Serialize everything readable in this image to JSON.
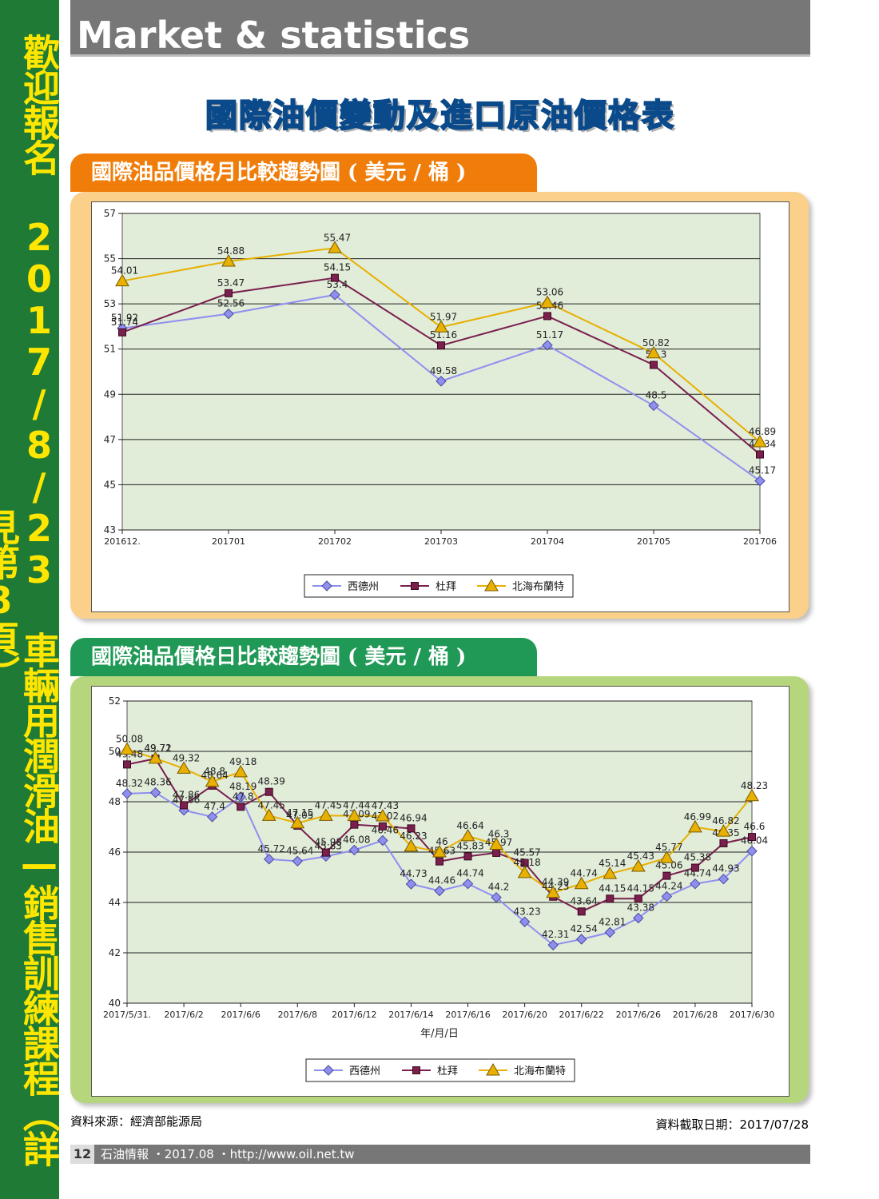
{
  "side_banner": {
    "text": "歡迎報名 2017/8/23 車輛用潤滑油—銷售訓練課程（詳見第8頁）"
  },
  "header": {
    "title": "Market & statistics"
  },
  "main_title": "國際油價變動及進口原油價格表",
  "tab_monthly": "國際油品價格月比較趨勢圖 ( 美元 / 桶 )",
  "tab_daily": "國際油品價格日比較趨勢圖 ( 美元 / 桶 )",
  "source_note": "資料來源：經濟部能源局",
  "date_note": "資料截取日期：2017/07/28",
  "footer": {
    "page": "12",
    "text": "石油情報 ・2017.08 ・http://www.oil.net.tw"
  },
  "colors": {
    "wti": "#8f8ff0",
    "dubai": "#7a1f4e",
    "brent": "#e8b000"
  },
  "chart_data": [
    {
      "type": "line",
      "title": "國際油品價格月比較趨勢圖 ( 美元 / 桶 )",
      "categories": [
        "201612.",
        "201701",
        "201702",
        "201703",
        "201704",
        "201705",
        "201706"
      ],
      "ylim": [
        43,
        57
      ],
      "yticks": [
        43,
        45,
        47,
        49,
        51,
        53,
        55,
        57
      ],
      "xlabel": "",
      "legend_position": "bottom",
      "grid": true,
      "series": [
        {
          "name": "西德州",
          "marker": "diamond",
          "values": [
            51.92,
            52.56,
            53.4,
            49.58,
            51.17,
            48.5,
            45.17
          ]
        },
        {
          "name": "杜拜",
          "marker": "square",
          "values": [
            51.74,
            53.47,
            54.15,
            51.16,
            52.46,
            50.3,
            46.34
          ]
        },
        {
          "name": "北海布蘭特",
          "marker": "triangle",
          "values": [
            54.01,
            54.88,
            55.47,
            51.97,
            53.06,
            50.82,
            46.89
          ]
        }
      ]
    },
    {
      "type": "line",
      "title": "國際油品價格日比較趨勢圖 ( 美元 / 桶 )",
      "categories": [
        "2017/5/31.",
        "2017/6/1",
        "2017/6/2",
        "2017/6/5",
        "2017/6/6",
        "2017/6/7",
        "2017/6/8",
        "2017/6/9",
        "2017/6/12",
        "2017/6/13",
        "2017/6/14",
        "2017/6/15",
        "2017/6/16",
        "2017/6/19",
        "2017/6/20",
        "2017/6/21",
        "2017/6/22",
        "2017/6/23",
        "2017/6/26",
        "2017/6/27",
        "2017/6/28",
        "2017/6/29",
        "2017/6/30"
      ],
      "tick_labels": [
        "2017/5/31.",
        "2017/6/2",
        "2017/6/6",
        "2017/6/8",
        "2017/6/12",
        "2017/6/14",
        "2017/6/16",
        "2017/6/20",
        "2017/6/22",
        "2017/6/26",
        "2017/6/28",
        "2017/6/30"
      ],
      "tick_indices": [
        0,
        2,
        4,
        6,
        8,
        10,
        12,
        14,
        16,
        18,
        20,
        22
      ],
      "ylim": [
        40,
        52
      ],
      "yticks": [
        40,
        42,
        44,
        46,
        48,
        50,
        52
      ],
      "xlabel": "年/月/日",
      "legend_position": "bottom",
      "grid": true,
      "series": [
        {
          "name": "西德州",
          "marker": "diamond",
          "values": [
            48.32,
            48.36,
            47.66,
            47.4,
            48.19,
            45.72,
            45.64,
            45.83,
            46.08,
            46.46,
            44.73,
            44.46,
            44.74,
            44.2,
            43.23,
            42.31,
            42.54,
            42.81,
            43.38,
            44.24,
            44.74,
            44.93,
            46.04
          ]
        },
        {
          "name": "杜拜",
          "marker": "square",
          "values": [
            49.48,
            49.71,
            47.86,
            48.64,
            47.8,
            48.39,
            47.05,
            45.98,
            47.09,
            47.02,
            46.94,
            45.63,
            45.83,
            45.97,
            45.57,
            44.23,
            43.64,
            44.15,
            44.15,
            45.06,
            45.38,
            46.35,
            46.6
          ]
        },
        {
          "name": "北海布蘭特",
          "marker": "triangle",
          "values": [
            50.08,
            49.72,
            49.32,
            48.8,
            49.18,
            47.45,
            47.15,
            47.45,
            47.44,
            47.43,
            46.23,
            46.0,
            46.64,
            46.3,
            45.18,
            44.39,
            44.74,
            45.14,
            45.43,
            45.77,
            46.99,
            46.82,
            48.23
          ]
        }
      ]
    }
  ]
}
